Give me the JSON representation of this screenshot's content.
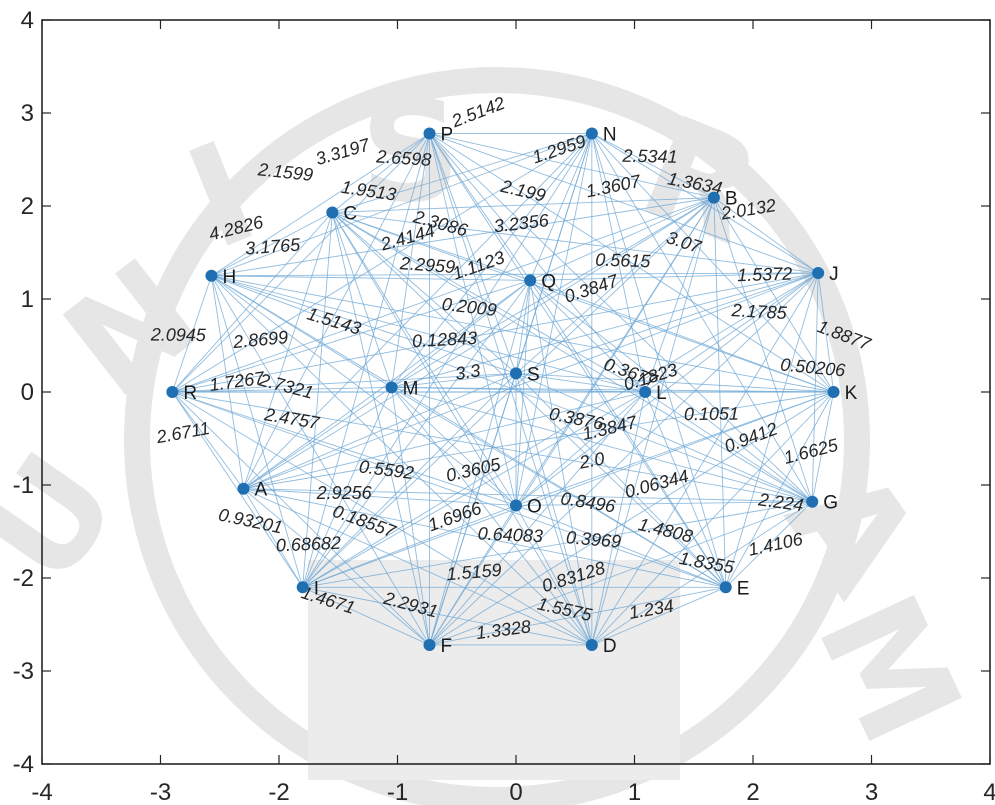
{
  "chart_data": {
    "type": "graph",
    "xlim": [
      -4,
      4
    ],
    "ylim": [
      -4,
      4
    ],
    "xticks": [
      -4,
      -3,
      -2,
      -1,
      0,
      1,
      2,
      3,
      4
    ],
    "yticks": [
      4,
      3,
      2,
      1,
      0,
      -1,
      -2,
      -3,
      -4
    ],
    "grid": false,
    "colors": {
      "edge": "#6ea7d4",
      "node": "#1f6fb2",
      "axis": "#262626"
    },
    "nodes": [
      {
        "id": "P",
        "x": -0.73,
        "y": 2.78
      },
      {
        "id": "N",
        "x": 0.64,
        "y": 2.78
      },
      {
        "id": "B",
        "x": 1.67,
        "y": 2.09
      },
      {
        "id": "C",
        "x": -1.55,
        "y": 1.93
      },
      {
        "id": "H",
        "x": -2.57,
        "y": 1.25
      },
      {
        "id": "J",
        "x": 2.55,
        "y": 1.28
      },
      {
        "id": "R",
        "x": -2.9,
        "y": 0.0
      },
      {
        "id": "K",
        "x": 2.68,
        "y": 0.0
      },
      {
        "id": "A",
        "x": -2.3,
        "y": -1.04
      },
      {
        "id": "G",
        "x": 2.5,
        "y": -1.18
      },
      {
        "id": "I",
        "x": -1.8,
        "y": -2.1
      },
      {
        "id": "E",
        "x": 1.77,
        "y": -2.1
      },
      {
        "id": "F",
        "x": -0.73,
        "y": -2.72
      },
      {
        "id": "D",
        "x": 0.64,
        "y": -2.72
      },
      {
        "id": "O",
        "x": 0.0,
        "y": -1.22
      },
      {
        "id": "L",
        "x": 1.09,
        "y": 0.0
      },
      {
        "id": "M",
        "x": -1.05,
        "y": 0.05
      },
      {
        "id": "Q",
        "x": 0.12,
        "y": 1.2
      },
      {
        "id": "S",
        "x": 0.0,
        "y": 0.2
      }
    ],
    "edge_labels": [
      {
        "text": "2.5142",
        "x": -0.3,
        "y": 2.95
      },
      {
        "text": "2.5341",
        "x": 1.13,
        "y": 2.47
      },
      {
        "text": "1.2959",
        "x": 0.38,
        "y": 2.55
      },
      {
        "text": "2.6598",
        "x": -0.95,
        "y": 2.45
      },
      {
        "text": "3.3197",
        "x": -1.45,
        "y": 2.52
      },
      {
        "text": "2.1599",
        "x": -1.95,
        "y": 2.3
      },
      {
        "text": "4.2826",
        "x": -2.35,
        "y": 1.7
      },
      {
        "text": "1.9513",
        "x": -1.25,
        "y": 2.1
      },
      {
        "text": "1.3607",
        "x": 0.83,
        "y": 2.15
      },
      {
        "text": "1.3634",
        "x": 1.5,
        "y": 2.18
      },
      {
        "text": "2.0132",
        "x": 1.97,
        "y": 1.9
      },
      {
        "text": "2.199",
        "x": 0.05,
        "y": 2.1
      },
      {
        "text": "3.2356",
        "x": 0.05,
        "y": 1.75
      },
      {
        "text": "2.3086",
        "x": -0.65,
        "y": 1.75
      },
      {
        "text": "3.1765",
        "x": -2.05,
        "y": 1.5
      },
      {
        "text": "3.07",
        "x": 1.4,
        "y": 1.55
      },
      {
        "text": "1.5372",
        "x": 2.1,
        "y": 1.2
      },
      {
        "text": "1.8877",
        "x": 2.75,
        "y": 0.55
      },
      {
        "text": "2.0945",
        "x": -2.85,
        "y": 0.55
      },
      {
        "text": "1.1123",
        "x": -0.3,
        "y": 1.3
      },
      {
        "text": "2.1785",
        "x": 2.05,
        "y": 0.8
      },
      {
        "text": "0.1823",
        "x": 1.15,
        "y": 0.1
      },
      {
        "text": "0.50206",
        "x": 2.5,
        "y": 0.2
      },
      {
        "text": "1.6625",
        "x": 2.5,
        "y": -0.7
      },
      {
        "text": "2.224",
        "x": 2.23,
        "y": -1.25
      },
      {
        "text": "1.4106",
        "x": 2.2,
        "y": -1.7
      },
      {
        "text": "1.8355",
        "x": 1.6,
        "y": -1.9
      },
      {
        "text": "1.234",
        "x": 1.15,
        "y": -2.4
      },
      {
        "text": "1.5575",
        "x": 0.4,
        "y": -2.4
      },
      {
        "text": "1.3328",
        "x": -0.1,
        "y": -2.62
      },
      {
        "text": "2.2931",
        "x": -0.9,
        "y": -2.35
      },
      {
        "text": "1.5159",
        "x": -0.35,
        "y": -2.0
      },
      {
        "text": "1.4671",
        "x": -1.6,
        "y": -2.3
      },
      {
        "text": "0.68682",
        "x": -1.75,
        "y": -1.7
      },
      {
        "text": "0.18557",
        "x": -1.3,
        "y": -1.45
      },
      {
        "text": "2.9256",
        "x": -1.45,
        "y": -1.15
      },
      {
        "text": "1.6966",
        "x": -0.5,
        "y": -1.4
      },
      {
        "text": "0.64083",
        "x": -0.05,
        "y": -1.6
      },
      {
        "text": "0.83128",
        "x": 0.5,
        "y": -2.05
      },
      {
        "text": "0.3969",
        "x": 0.65,
        "y": -1.65
      },
      {
        "text": "0.06344",
        "x": 1.2,
        "y": -1.05
      },
      {
        "text": "0.5592",
        "x": -1.1,
        "y": -0.9
      },
      {
        "text": "0.3605",
        "x": -0.35,
        "y": -0.9
      },
      {
        "text": "2.4757",
        "x": -1.9,
        "y": -0.35
      },
      {
        "text": "2.6711",
        "x": -2.8,
        "y": -0.5
      },
      {
        "text": "0.93201",
        "x": -2.25,
        "y": -1.45
      },
      {
        "text": "1.7267",
        "x": -2.35,
        "y": 0.05
      },
      {
        "text": "2.7321",
        "x": -1.95,
        "y": 0.0
      },
      {
        "text": "2.8699",
        "x": -2.15,
        "y": 0.5
      },
      {
        "text": "1.5143",
        "x": -1.55,
        "y": 0.7
      },
      {
        "text": "0.12843",
        "x": -0.6,
        "y": 0.5
      },
      {
        "text": "0.3677",
        "x": 0.95,
        "y": 0.15
      },
      {
        "text": "0.1051",
        "x": 1.65,
        "y": -0.3
      },
      {
        "text": "0.9412",
        "x": 2.0,
        "y": -0.55
      },
      {
        "text": "0.5615",
        "x": 0.9,
        "y": 1.35
      },
      {
        "text": "0.3847",
        "x": 0.65,
        "y": 1.05
      },
      {
        "text": "2.2959",
        "x": -0.75,
        "y": 1.3
      },
      {
        "text": "2.4144",
        "x": -0.9,
        "y": 1.6
      },
      {
        "text": "0.2009",
        "x": -0.4,
        "y": 0.85
      },
      {
        "text": "1.3847",
        "x": 0.8,
        "y": -0.45
      },
      {
        "text": "0.8496",
        "x": 0.6,
        "y": -1.25
      },
      {
        "text": "2.0",
        "x": 0.65,
        "y": -0.8
      },
      {
        "text": "0.3876",
        "x": 0.5,
        "y": -0.35
      },
      {
        "text": "3.3",
        "x": -0.4,
        "y": 0.15
      },
      {
        "text": "1.4808",
        "x": 1.25,
        "y": -1.55
      }
    ]
  }
}
